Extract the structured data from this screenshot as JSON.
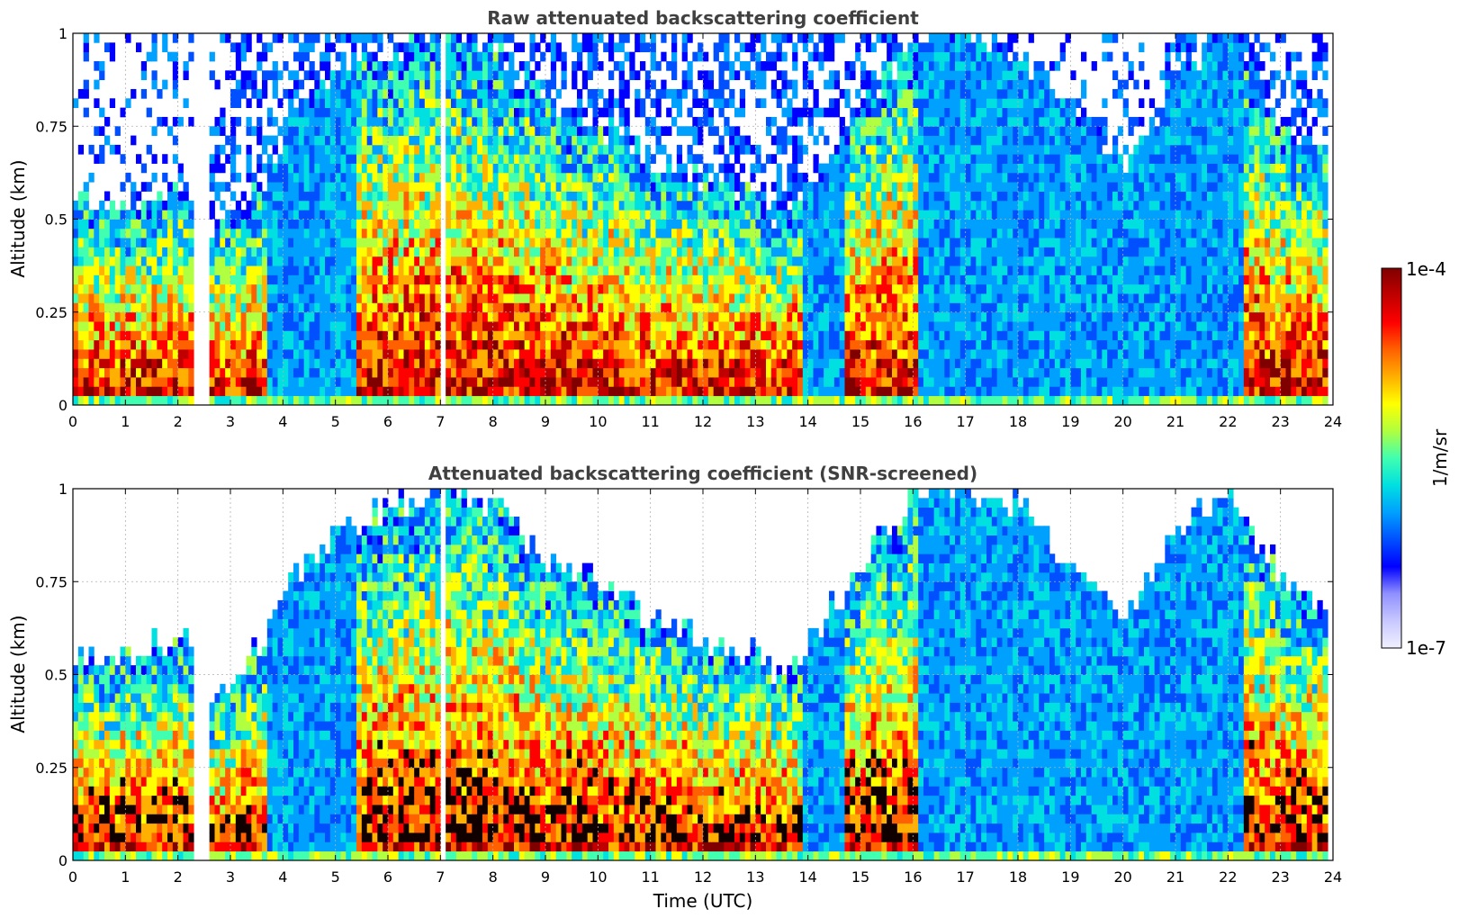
{
  "chart_data": [
    {
      "type": "heatmap",
      "title": "Raw attenuated backscattering coefficient",
      "xlabel": "",
      "ylabel": "Altitude (km)",
      "xlim": [
        0,
        24
      ],
      "ylim": [
        0,
        1
      ],
      "x_ticks": [
        "0",
        "1",
        "2",
        "3",
        "4",
        "5",
        "6",
        "7",
        "8",
        "9",
        "10",
        "11",
        "12",
        "13",
        "14",
        "15",
        "16",
        "17",
        "18",
        "19",
        "20",
        "21",
        "22",
        "23",
        "24"
      ],
      "y_ticks": [
        "0",
        "0.25",
        "0.5",
        "0.75",
        "1"
      ],
      "grid": true,
      "screened": false,
      "layer_top_km": {
        "hours": [
          0,
          1,
          2,
          2.3,
          2.5,
          3,
          3.6,
          4,
          5,
          6,
          7,
          8,
          9,
          10,
          11,
          12,
          13,
          13.5,
          14,
          15,
          16,
          17,
          18,
          19,
          20,
          21,
          22,
          23,
          23.8
        ],
        "values": [
          0.55,
          0.55,
          0.6,
          0.55,
          0.45,
          0.5,
          0.6,
          0.75,
          0.9,
          0.95,
          1.0,
          0.95,
          0.8,
          0.75,
          0.65,
          0.6,
          0.55,
          0.5,
          0.6,
          0.8,
          1.0,
          1.0,
          0.95,
          0.8,
          0.65,
          0.9,
          1.0,
          0.75,
          0.65
        ]
      }
    },
    {
      "type": "heatmap",
      "title": "Attenuated backscattering coefficient (SNR-screened)",
      "xlabel": "Time (UTC)",
      "ylabel": "Altitude (km)",
      "xlim": [
        0,
        24
      ],
      "ylim": [
        0,
        1
      ],
      "x_ticks": [
        "0",
        "1",
        "2",
        "3",
        "4",
        "5",
        "6",
        "7",
        "8",
        "9",
        "10",
        "11",
        "12",
        "13",
        "14",
        "15",
        "16",
        "17",
        "18",
        "19",
        "20",
        "21",
        "22",
        "23",
        "24"
      ],
      "y_ticks": [
        "0",
        "0.25",
        "0.5",
        "0.75",
        "1"
      ],
      "grid": true,
      "screened": true,
      "layer_top_km": {
        "hours": [
          0,
          1,
          2,
          2.3,
          2.5,
          3,
          3.6,
          4,
          5,
          6,
          7,
          8,
          9,
          10,
          11,
          12,
          13,
          13.5,
          14,
          15,
          16,
          17,
          18,
          19,
          20,
          21,
          22,
          23,
          23.8
        ],
        "values": [
          0.55,
          0.55,
          0.6,
          0.55,
          0.45,
          0.5,
          0.6,
          0.75,
          0.9,
          0.95,
          1.0,
          0.95,
          0.8,
          0.75,
          0.65,
          0.6,
          0.55,
          0.5,
          0.6,
          0.8,
          1.0,
          1.0,
          0.95,
          0.8,
          0.65,
          0.9,
          1.0,
          0.75,
          0.65
        ]
      }
    }
  ],
  "colorbar": {
    "max_label": "1e-4",
    "min_label": "1e-7",
    "units": "1/m/sr",
    "colors": [
      "#f0f0ff",
      "#c8c8ff",
      "#9090ff",
      "#0000ff",
      "#0050ff",
      "#00a0ff",
      "#00e0e0",
      "#40ffb0",
      "#b0ff40",
      "#ffff00",
      "#ffb000",
      "#ff6000",
      "#ff0000",
      "#c00000",
      "#800000"
    ]
  },
  "gaps_utc": [
    [
      2.27,
      2.5
    ],
    [
      6.95,
      7.05
    ]
  ]
}
